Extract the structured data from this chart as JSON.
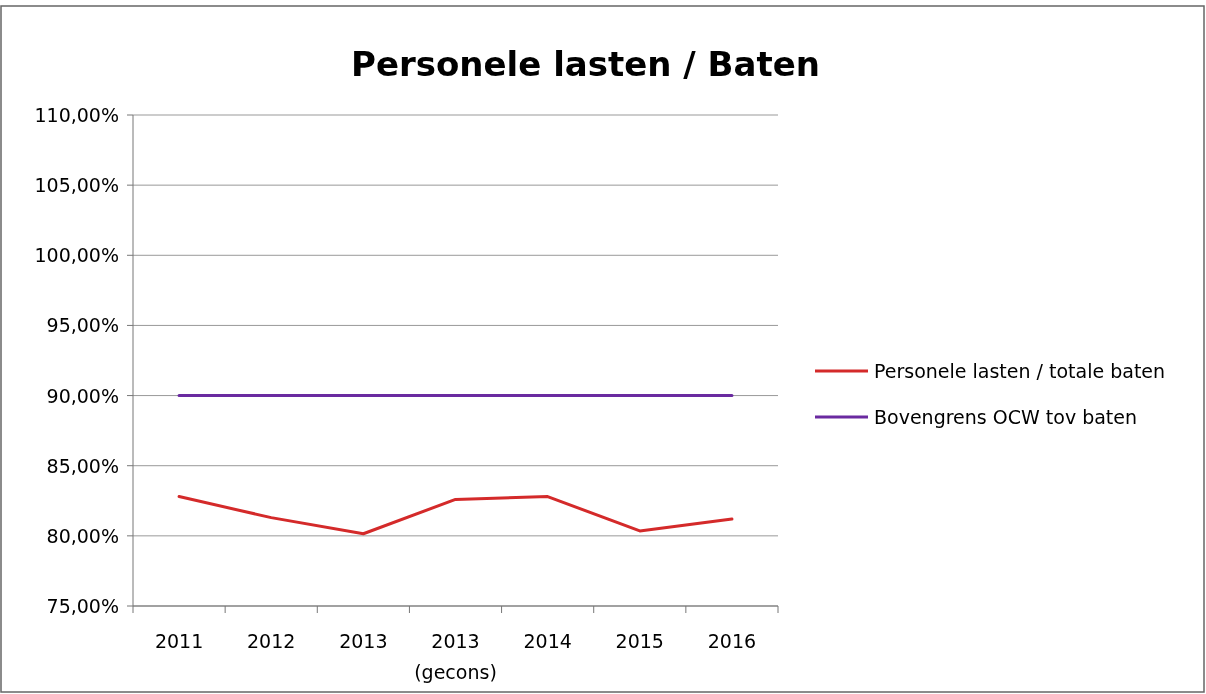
{
  "chart_data": {
    "type": "line",
    "title": "Personele lasten / Baten",
    "categories": [
      "2011",
      "2012",
      "2013",
      "2013\n(gecons)",
      "2014",
      "2015",
      "2016"
    ],
    "series": [
      {
        "name": "Personele lasten / totale baten",
        "color": "#d42a2a",
        "values": [
          82.8,
          81.3,
          80.15,
          82.6,
          82.8,
          80.35,
          81.2
        ]
      },
      {
        "name": "Bovengrens OCW tov baten",
        "color": "#6a2aa0",
        "values": [
          90,
          90,
          90,
          90,
          90,
          90,
          90
        ]
      }
    ],
    "ylim": [
      75,
      110
    ],
    "yticks": [
      {
        "value": 75,
        "label": "75,00%"
      },
      {
        "value": 80,
        "label": "80,00%"
      },
      {
        "value": 85,
        "label": "85,00%"
      },
      {
        "value": 90,
        "label": "90,00%"
      },
      {
        "value": 95,
        "label": "95,00%"
      },
      {
        "value": 100,
        "label": "100,00%"
      },
      {
        "value": 105,
        "label": "105,00%"
      },
      {
        "value": 110,
        "label": "110,00%"
      }
    ],
    "grid": "y",
    "legend": "right",
    "marker": "none",
    "line_style": "solid"
  }
}
